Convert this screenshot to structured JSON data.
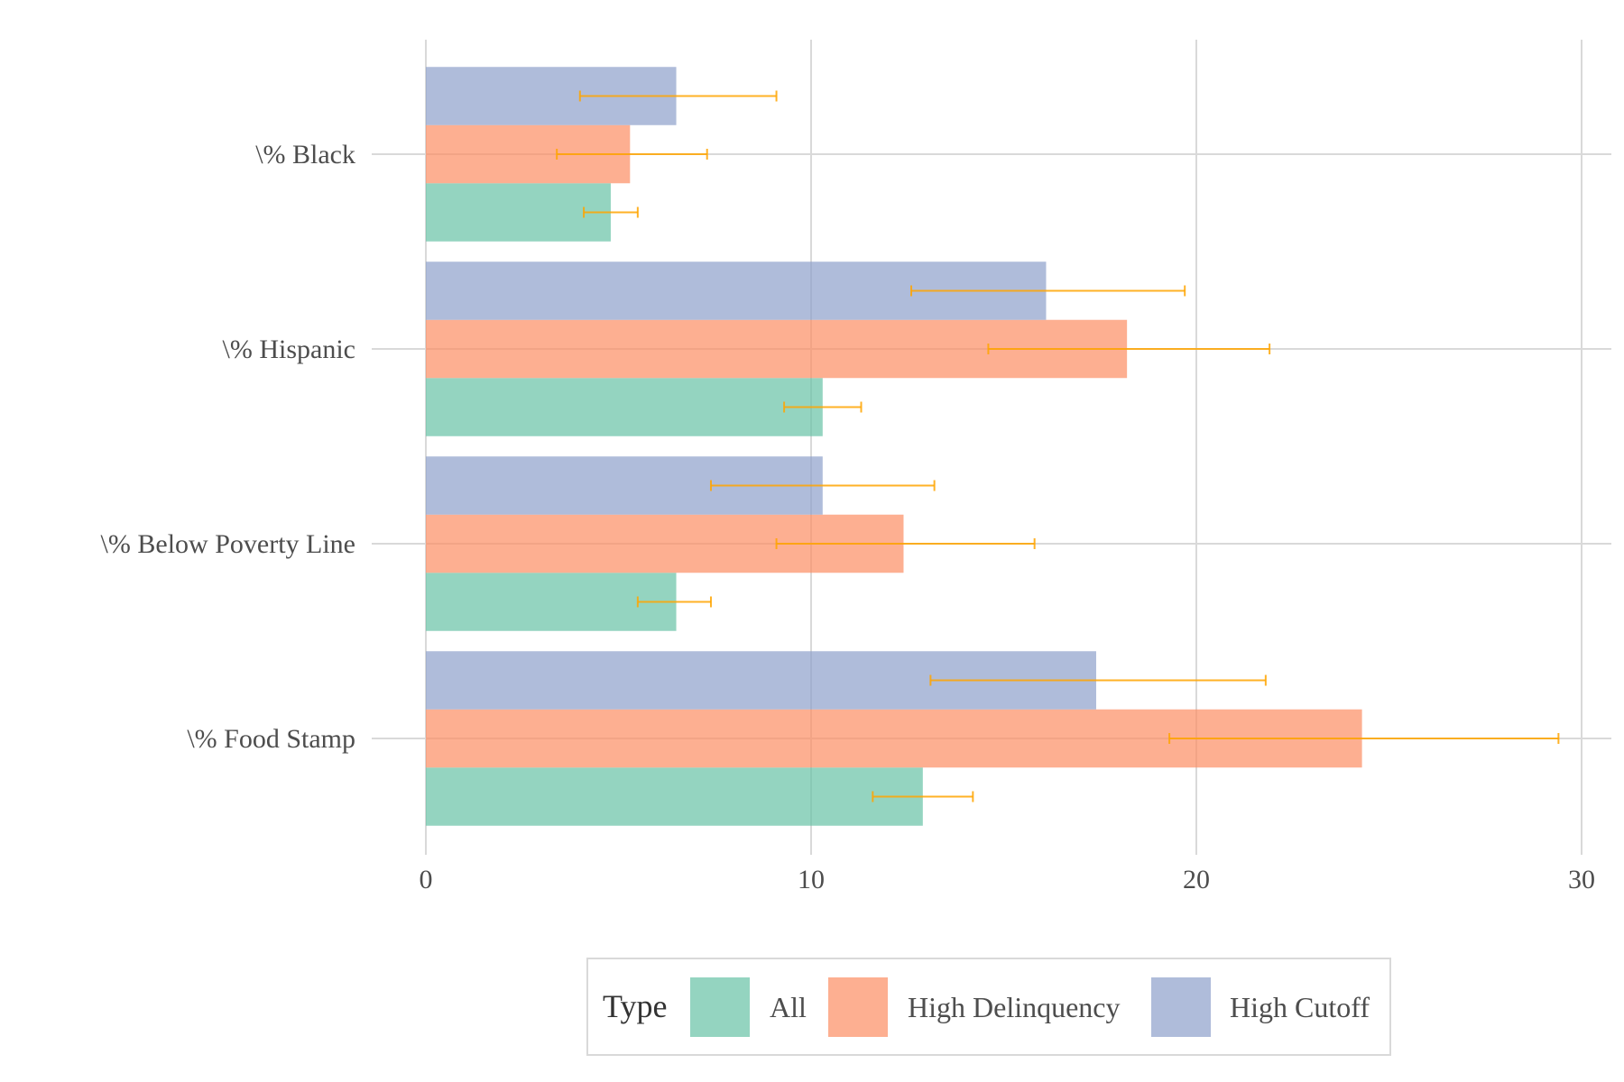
{
  "chart_data": {
    "type": "bar",
    "orientation": "horizontal",
    "categories": [
      "\\% Black",
      "\\% Hispanic",
      "\\% Below Poverty Line",
      "\\% Food Stamp"
    ],
    "series": [
      {
        "name": "All",
        "color": "#66c2a5",
        "values": [
          4.8,
          10.3,
          6.5,
          12.9
        ],
        "error_low": [
          4.1,
          9.3,
          5.5,
          11.6
        ],
        "error_high": [
          5.5,
          11.3,
          7.4,
          14.2
        ]
      },
      {
        "name": "High Delinquency",
        "color": "#fc8d62",
        "values": [
          5.3,
          18.2,
          12.4,
          24.3
        ],
        "error_low": [
          3.4,
          14.6,
          9.1,
          19.3
        ],
        "error_high": [
          7.3,
          21.9,
          15.8,
          29.4
        ]
      },
      {
        "name": "High Cutoff",
        "color": "#8da0cb",
        "values": [
          6.5,
          16.1,
          10.3,
          17.4
        ],
        "error_low": [
          4.0,
          12.6,
          7.4,
          13.1
        ],
        "error_high": [
          9.1,
          19.7,
          13.2,
          21.8
        ]
      }
    ],
    "xticks": [
      0,
      10,
      20,
      30
    ],
    "xlim": [
      0,
      30
    ],
    "legend": {
      "title": "Type",
      "position": "bottom"
    },
    "error_bar_color": "#ffa500",
    "grid": true
  }
}
